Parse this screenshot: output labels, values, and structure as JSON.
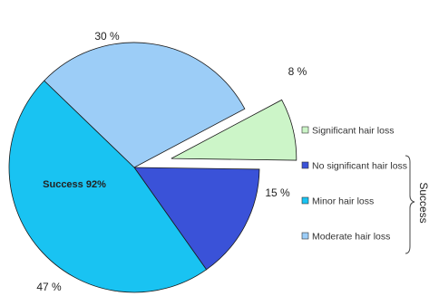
{
  "chart_data": {
    "type": "pie",
    "slices": [
      {
        "label": "Significant hair loss",
        "value": 8,
        "value_label": "8 %",
        "color": "#ccf5c8",
        "exploded": true
      },
      {
        "label": "No significant hair loss",
        "value": 15,
        "value_label": "15 %",
        "color": "#3a52d8",
        "exploded": false
      },
      {
        "label": "Minor hair loss",
        "value": 47,
        "value_label": "47 %",
        "color": "#19c3f2",
        "exploded": false
      },
      {
        "label": "Moderate hair loss",
        "value": 30,
        "value_label": "30 %",
        "color": "#9ccdf7",
        "exploded": false
      }
    ],
    "annotation": "Success 92%",
    "legend": {
      "position": "right",
      "items": [
        "Significant hair loss",
        "No significant hair loss",
        "Minor hair loss",
        "Moderate hair loss"
      ],
      "group_label": "Success",
      "group_items": [
        "No significant hair loss",
        "Minor hair loss",
        "Moderate hair loss"
      ]
    }
  }
}
